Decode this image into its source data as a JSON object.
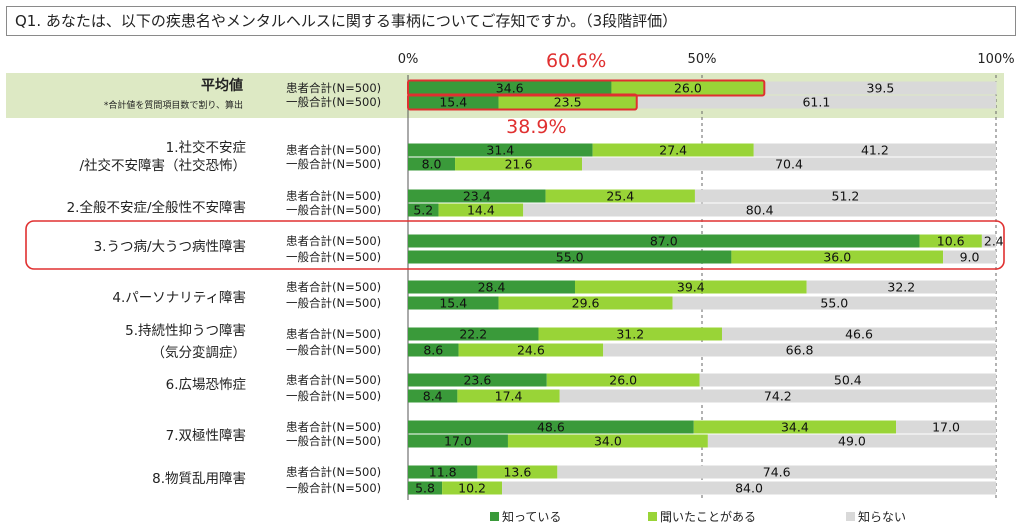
{
  "question": "Q1. あなたは、以下の疾患名やメンタルヘルスに関する事柄についてご存知ですか。（3段階評価）",
  "colors": {
    "known": "#3a9a3a",
    "heard": "#99d437",
    "unknown": "#d9d9d9",
    "highlight_bg": "#dde9c4",
    "highlight_border": "#e03030",
    "callout": "#e03030"
  },
  "callouts": {
    "patient_total": "60.6%",
    "general_total": "38.9%"
  },
  "chart_data": {
    "type": "bar",
    "orientation": "horizontal-stacked-100",
    "title": "Q1. あなたは、以下の疾患名やメンタルヘルスに関する事柄についてご存知ですか。（3段階評価）",
    "x_ticks": [
      "0%",
      "50%",
      "100%"
    ],
    "xlim": [
      0,
      100
    ],
    "legend": [
      "知っている",
      "聞いたことがある",
      "知らない"
    ],
    "legend_position": "bottom",
    "groups": [
      "患者合計(N=500)",
      "一般合計(N=500)"
    ],
    "items": [
      {
        "label": [
          "平均値"
        ],
        "note": "*合計値を質問項目数で割り、算出",
        "rows": [
          {
            "group": "患者合計(N=500)",
            "values": [
              34.6,
              26.0,
              39.5
            ]
          },
          {
            "group": "一般合計(N=500)",
            "values": [
              15.4,
              23.5,
              61.1
            ]
          }
        ]
      },
      {
        "label": [
          "1.社交不安症",
          "/社交不安障害（社交恐怖）"
        ],
        "rows": [
          {
            "group": "患者合計(N=500)",
            "values": [
              31.4,
              27.4,
              41.2
            ]
          },
          {
            "group": "一般合計(N=500)",
            "values": [
              8.0,
              21.6,
              70.4
            ]
          }
        ]
      },
      {
        "label": [
          "2.全般不安症/全般性不安障害"
        ],
        "rows": [
          {
            "group": "患者合計(N=500)",
            "values": [
              23.4,
              25.4,
              51.2
            ]
          },
          {
            "group": "一般合計(N=500)",
            "values": [
              5.2,
              14.4,
              80.4
            ]
          }
        ]
      },
      {
        "label": [
          "3.うつ病/大うつ病性障害"
        ],
        "rows": [
          {
            "group": "患者合計(N=500)",
            "values": [
              87.0,
              10.6,
              2.4
            ]
          },
          {
            "group": "一般合計(N=500)",
            "values": [
              55.0,
              36.0,
              9.0
            ]
          }
        ]
      },
      {
        "label": [
          "4.パーソナリティ障害"
        ],
        "rows": [
          {
            "group": "患者合計(N=500)",
            "values": [
              28.4,
              39.4,
              32.2
            ]
          },
          {
            "group": "一般合計(N=500)",
            "values": [
              15.4,
              29.6,
              55.0
            ]
          }
        ]
      },
      {
        "label": [
          "5.持続性抑うつ障害",
          "（気分変調症）"
        ],
        "rows": [
          {
            "group": "患者合計(N=500)",
            "values": [
              22.2,
              31.2,
              46.6
            ]
          },
          {
            "group": "一般合計(N=500)",
            "values": [
              8.6,
              24.6,
              66.8
            ]
          }
        ]
      },
      {
        "label": [
          "6.広場恐怖症"
        ],
        "rows": [
          {
            "group": "患者合計(N=500)",
            "values": [
              23.6,
              26.0,
              50.4
            ]
          },
          {
            "group": "一般合計(N=500)",
            "values": [
              8.4,
              17.4,
              74.2
            ]
          }
        ]
      },
      {
        "label": [
          "7.双極性障害"
        ],
        "rows": [
          {
            "group": "患者合計(N=500)",
            "values": [
              48.6,
              34.4,
              17.0
            ]
          },
          {
            "group": "一般合計(N=500)",
            "values": [
              17.0,
              34.0,
              49.0
            ]
          }
        ]
      },
      {
        "label": [
          "8.物質乱用障害"
        ],
        "rows": [
          {
            "group": "患者合計(N=500)",
            "values": [
              11.8,
              13.6,
              74.6
            ]
          },
          {
            "group": "一般合計(N=500)",
            "values": [
              5.8,
              10.2,
              84.0
            ]
          }
        ]
      }
    ]
  }
}
